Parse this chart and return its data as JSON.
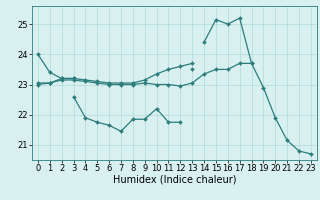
{
  "x": [
    0,
    1,
    2,
    3,
    4,
    5,
    6,
    7,
    8,
    9,
    10,
    11,
    12,
    13,
    14,
    15,
    16,
    17,
    18,
    19,
    20,
    21,
    22,
    23
  ],
  "lines": [
    [
      24.0,
      23.4,
      23.2,
      23.2,
      null,
      null,
      null,
      null,
      null,
      null,
      null,
      null,
      null,
      null,
      null,
      null,
      null,
      null,
      null,
      null,
      null,
      null,
      null,
      null
    ],
    [
      null,
      null,
      null,
      22.6,
      21.9,
      21.75,
      21.65,
      21.45,
      21.85,
      21.85,
      22.2,
      21.75,
      21.75,
      null,
      null,
      null,
      null,
      null,
      null,
      null,
      null,
      null,
      null,
      null
    ],
    [
      null,
      null,
      null,
      null,
      null,
      null,
      null,
      null,
      null,
      null,
      null,
      null,
      null,
      null,
      24.4,
      25.15,
      25.0,
      25.2,
      23.7,
      null,
      null,
      null,
      null,
      null
    ],
    [
      23.0,
      23.05,
      23.15,
      23.15,
      23.1,
      23.05,
      23.0,
      23.0,
      23.0,
      23.05,
      23.0,
      23.0,
      22.95,
      23.05,
      23.35,
      23.5,
      23.5,
      23.7,
      23.7,
      22.9,
      21.9,
      21.15,
      20.8,
      20.7
    ],
    [
      null,
      null,
      null,
      null,
      null,
      null,
      null,
      null,
      null,
      null,
      null,
      null,
      null,
      23.5,
      null,
      null,
      null,
      null,
      null,
      null,
      null,
      null,
      null,
      null
    ],
    [
      23.05,
      23.05,
      23.2,
      23.2,
      23.15,
      23.1,
      23.05,
      23.05,
      23.05,
      23.15,
      23.35,
      23.5,
      23.6,
      23.7,
      null,
      null,
      null,
      null,
      null,
      null,
      null,
      null,
      null,
      null
    ]
  ],
  "color": "#2d7d7d",
  "bg_color": "#d8f0f0",
  "grid_color": "#b0d8d8",
  "xlabel": "Humidex (Indice chaleur)",
  "ylim": [
    20.5,
    25.6
  ],
  "xlim": [
    -0.5,
    23.5
  ],
  "yticks": [
    21,
    22,
    23,
    24,
    25
  ],
  "xticks": [
    0,
    1,
    2,
    3,
    4,
    5,
    6,
    7,
    8,
    9,
    10,
    11,
    12,
    13,
    14,
    15,
    16,
    17,
    18,
    19,
    20,
    21,
    22,
    23
  ],
  "label_fontsize": 7,
  "tick_fontsize": 6,
  "lw": 0.9,
  "ms": 2.0
}
